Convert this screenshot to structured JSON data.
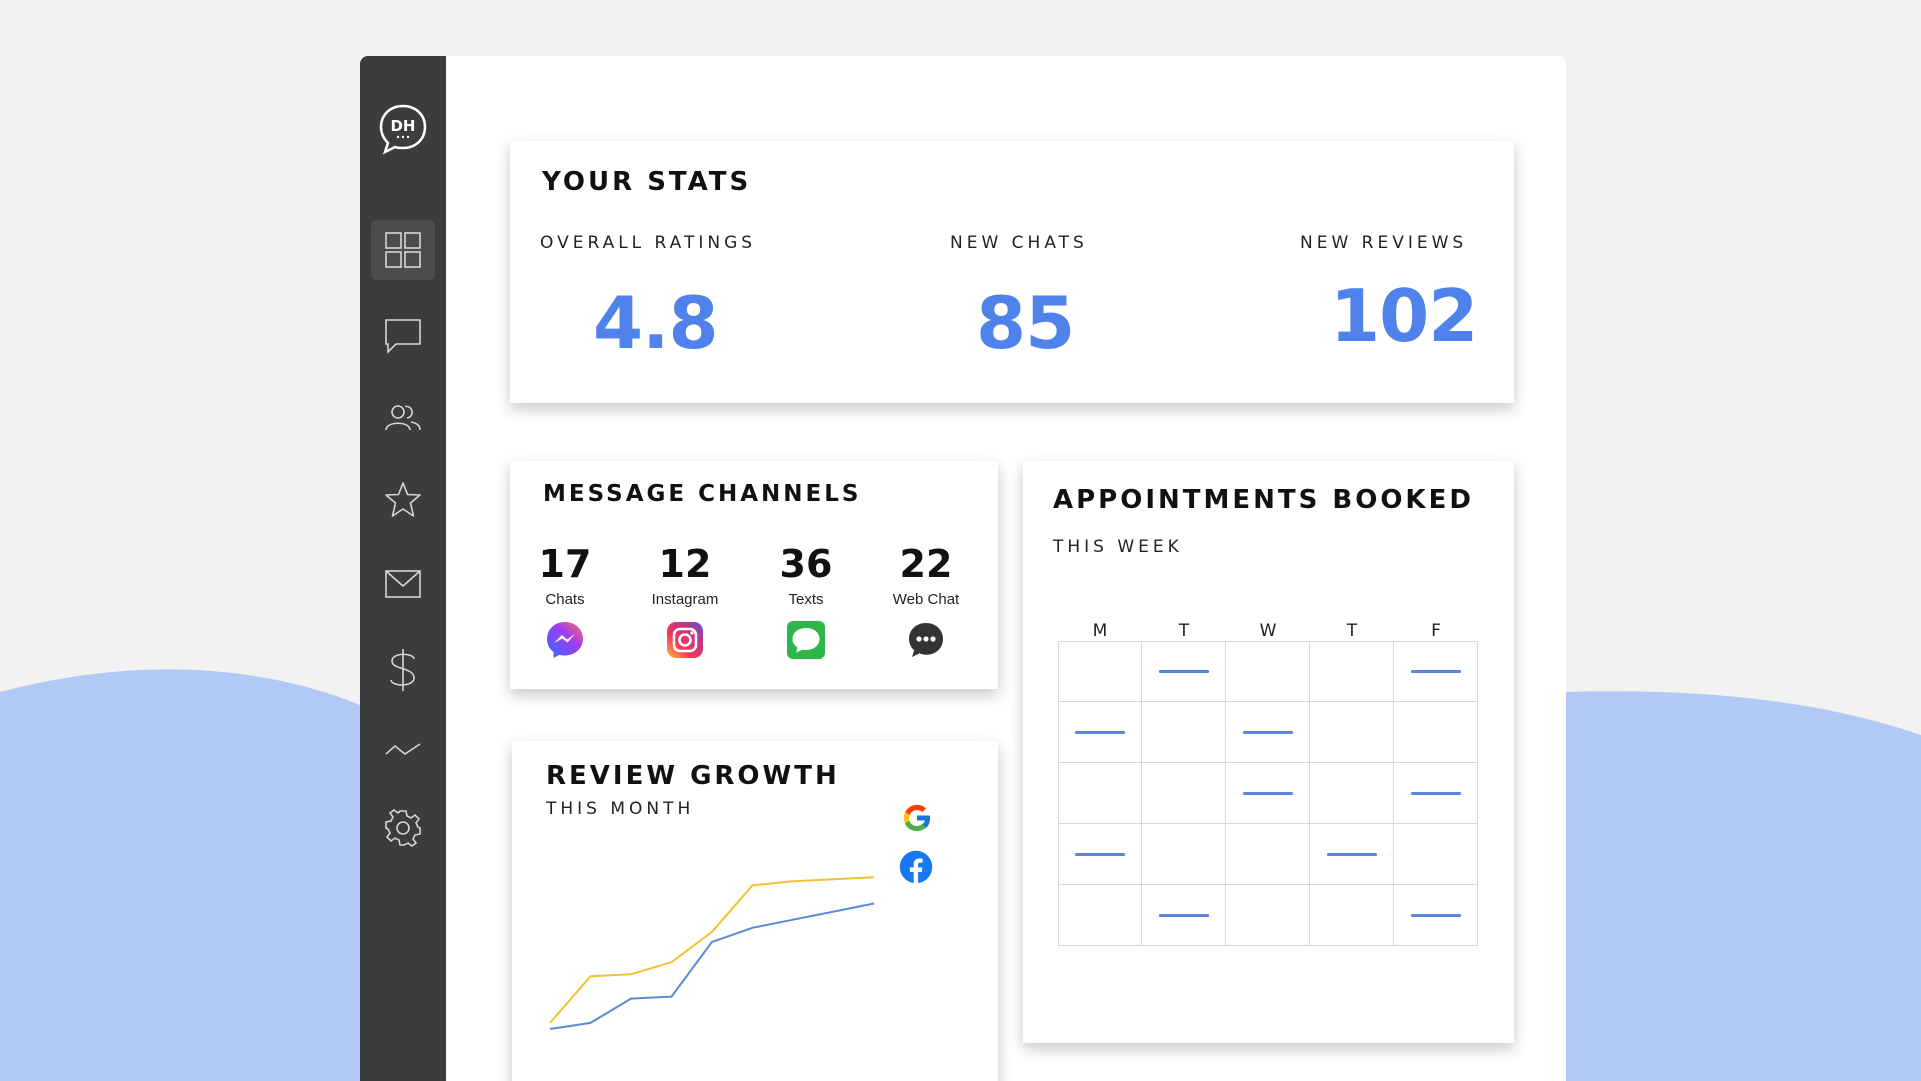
{
  "colors": {
    "accent": "#4f82ea",
    "sidebar": "#3c3c3d",
    "wave": "#b3c9f5",
    "google_line": "#f2c230",
    "facebook_line": "#5a8bd6"
  },
  "sidebar": {
    "logo_text": "DH",
    "items": [
      {
        "icon": "dashboard-grid-icon",
        "active": true
      },
      {
        "icon": "chat-bubble-icon"
      },
      {
        "icon": "users-icon"
      },
      {
        "icon": "star-icon"
      },
      {
        "icon": "mail-icon"
      },
      {
        "icon": "dollar-icon"
      },
      {
        "icon": "trend-line-icon"
      },
      {
        "icon": "gear-icon"
      }
    ]
  },
  "stats": {
    "title": "YOUR STATS",
    "items": [
      {
        "label": "OVERALL RATINGS",
        "value": "4.8"
      },
      {
        "label": "NEW CHATS",
        "value": "85"
      },
      {
        "label": "NEW REVIEWS",
        "value": "102"
      }
    ]
  },
  "channels": {
    "title": "MESSAGE CHANNELS",
    "items": [
      {
        "count": "17",
        "name": "Chats",
        "icon": "messenger-icon"
      },
      {
        "count": "12",
        "name": "Instagram",
        "icon": "instagram-icon"
      },
      {
        "count": "36",
        "name": "Texts",
        "icon": "messages-icon"
      },
      {
        "count": "22",
        "name": "Web Chat",
        "icon": "webchat-icon"
      }
    ]
  },
  "review_growth": {
    "title": "REVIEW GROWTH",
    "subtitle": "THIS MONTH",
    "legend": [
      {
        "icon": "google-icon"
      },
      {
        "icon": "facebook-icon"
      }
    ]
  },
  "chart_data": {
    "type": "line",
    "title": "REVIEW GROWTH",
    "subtitle": "THIS MONTH",
    "x": [
      1,
      2,
      3,
      4,
      5,
      6,
      7,
      8,
      9
    ],
    "series": [
      {
        "icon": "google-icon",
        "color": "#f2c230",
        "values": [
          5,
          28,
          29,
          35,
          50,
          73,
          75,
          76,
          77
        ]
      },
      {
        "icon": "facebook-icon",
        "color": "#5a8bd6",
        "values": [
          2,
          5,
          17,
          18,
          45,
          52,
          56,
          60,
          64
        ]
      }
    ],
    "ylim": [
      0,
      85
    ],
    "grid": false,
    "legend": "right"
  },
  "appointments": {
    "title": "APPOINTMENTS BOOKED",
    "subtitle": "THIS WEEK",
    "days": [
      "M",
      "T",
      "W",
      "T",
      "F"
    ],
    "rows": [
      [
        false,
        true,
        false,
        false,
        true
      ],
      [
        true,
        false,
        true,
        false,
        false
      ],
      [
        false,
        false,
        true,
        false,
        true
      ],
      [
        true,
        false,
        false,
        true,
        false
      ],
      [
        false,
        true,
        false,
        false,
        true
      ]
    ]
  }
}
